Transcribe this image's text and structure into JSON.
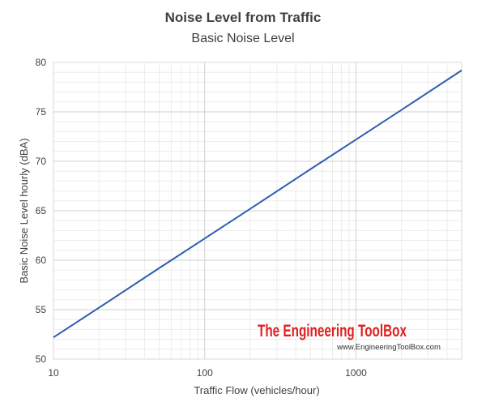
{
  "chart_data": {
    "type": "line",
    "title": "Noise Level from Traffic",
    "subtitle": "Basic Noise Level",
    "xlabel": "Traffic Flow (vehicles/hour)",
    "ylabel": "Basic Noise Level hourly (dBA)",
    "x_scale": "log",
    "xlim": [
      10,
      5000
    ],
    "ylim": [
      50,
      80
    ],
    "x_ticks": [
      {
        "value": 10,
        "label": "10"
      },
      {
        "value": 100,
        "label": "100"
      },
      {
        "value": 1000,
        "label": "1000"
      }
    ],
    "y_ticks": [
      {
        "value": 50,
        "label": "50"
      },
      {
        "value": 55,
        "label": "55"
      },
      {
        "value": 60,
        "label": "60"
      },
      {
        "value": 65,
        "label": "65"
      },
      {
        "value": 70,
        "label": "70"
      },
      {
        "value": 75,
        "label": "75"
      },
      {
        "value": 80,
        "label": "80"
      }
    ],
    "grid": true,
    "series": [
      {
        "color": "#2e5fad",
        "x": [
          10,
          20,
          50,
          100,
          200,
          500,
          1000,
          2000,
          5000
        ],
        "y": [
          52.2,
          55.2,
          59.2,
          62.2,
          65.2,
          69.2,
          72.2,
          75.2,
          79.2
        ]
      }
    ]
  },
  "watermark": {
    "name": "The Engineering ToolBox",
    "url": "www.EngineeringToolBox.com",
    "color": "#e02020"
  }
}
